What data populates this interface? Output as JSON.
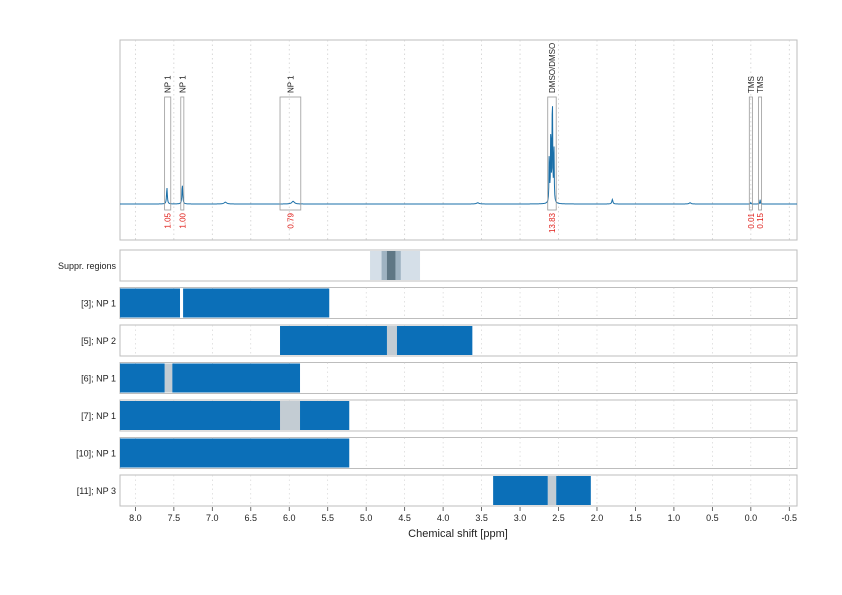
{
  "chart_data": {
    "type": "area",
    "xlabel": "Chemical shift [ppm]",
    "xlim": [
      8.2,
      -0.6
    ],
    "x_ticks": [
      "8.0",
      "7.5",
      "7.0",
      "6.5",
      "6.0",
      "5.5",
      "5.0",
      "4.5",
      "4.0",
      "3.5",
      "3.0",
      "2.5",
      "2.0",
      "1.5",
      "1.0",
      "0.5",
      "0.0",
      "-0.5"
    ],
    "x_tick_values": [
      8.0,
      7.5,
      7.0,
      6.5,
      6.0,
      5.5,
      5.0,
      4.5,
      4.0,
      3.5,
      3.0,
      2.5,
      2.0,
      1.5,
      1.0,
      0.5,
      0.0,
      -0.5
    ],
    "grid": "vertical dotted",
    "spectrum": {
      "line_color": "#1a6fa8",
      "peaks": [
        {
          "shift": 7.59,
          "height": 0.11,
          "width": 0.006
        },
        {
          "shift": 7.39,
          "height": 0.13,
          "width": 0.006
        },
        {
          "shift": 6.83,
          "height": 0.012,
          "width": 0.02
        },
        {
          "shift": 5.95,
          "height": 0.018,
          "width": 0.02
        },
        {
          "shift": 3.55,
          "height": 0.008,
          "width": 0.02
        },
        {
          "shift": 2.62,
          "height": 0.35,
          "width": 0.004
        },
        {
          "shift": 2.6,
          "height": 0.55,
          "width": 0.004
        },
        {
          "shift": 2.58,
          "height": 0.8,
          "width": 0.004
        },
        {
          "shift": 2.56,
          "height": 0.42,
          "width": 0.004
        },
        {
          "shift": 1.8,
          "height": 0.03,
          "width": 0.008
        },
        {
          "shift": 0.79,
          "height": 0.008,
          "width": 0.015
        },
        {
          "shift": 0.0,
          "height": 0.01,
          "width": 0.004
        },
        {
          "shift": -0.12,
          "height": 0.03,
          "width": 0.004
        }
      ]
    },
    "peak_annotations": [
      {
        "label": "NP 1",
        "from": 7.62,
        "to": 7.54,
        "integral": "1.05"
      },
      {
        "label": "NP 1",
        "from": 7.41,
        "to": 7.37,
        "integral": "1.00"
      },
      {
        "label": "NP 1",
        "from": 6.12,
        "to": 5.85,
        "integral": "0.79"
      },
      {
        "label": "DMSO/DMSO",
        "from": 2.64,
        "to": 2.53,
        "integral": "13.83"
      },
      {
        "label": "TMS",
        "from": 0.02,
        "to": -0.02,
        "integral": "0.01"
      },
      {
        "label": "TMS",
        "from": -0.1,
        "to": -0.14,
        "integral": "0.15"
      }
    ],
    "suppression": {
      "label": "Suppr. regions",
      "regions": [
        {
          "from": 4.95,
          "to": 4.3,
          "level": 1,
          "color": "#d5dfe8"
        },
        {
          "from": 4.8,
          "to": 4.55,
          "level": 2,
          "color": "#9fb3c2"
        },
        {
          "from": 4.73,
          "to": 4.62,
          "level": 3,
          "color": "#5f7785"
        }
      ]
    },
    "rows": [
      {
        "label": "[3]; NP 1",
        "bars": [
          {
            "from": 8.2,
            "to": 7.42
          },
          {
            "from": 7.38,
            "to": 5.48
          }
        ],
        "gaps": []
      },
      {
        "label": "[5]; NP 2",
        "bars": [
          {
            "from": 6.12,
            "to": 4.73
          },
          {
            "from": 4.6,
            "to": 3.62
          }
        ],
        "gaps": [
          {
            "from": 4.73,
            "to": 4.6
          }
        ]
      },
      {
        "label": "[6]; NP 1",
        "bars": [
          {
            "from": 8.2,
            "to": 7.62
          },
          {
            "from": 7.52,
            "to": 5.86
          }
        ],
        "gaps": [
          {
            "from": 7.62,
            "to": 7.52
          }
        ]
      },
      {
        "label": "[7]; NP 1",
        "bars": [
          {
            "from": 8.2,
            "to": 6.12
          },
          {
            "from": 5.86,
            "to": 5.22
          }
        ],
        "gaps": [
          {
            "from": 6.12,
            "to": 5.86
          }
        ]
      },
      {
        "label": "[10]; NP 1",
        "bars": [
          {
            "from": 8.2,
            "to": 5.22
          }
        ],
        "gaps": []
      },
      {
        "label": "[11]; NP 3",
        "bars": [
          {
            "from": 3.35,
            "to": 2.64
          },
          {
            "from": 2.53,
            "to": 2.08
          }
        ],
        "gaps": [
          {
            "from": 2.64,
            "to": 2.53
          }
        ]
      }
    ],
    "colors": {
      "bar": "#0b6fb8",
      "gap": "#c3ccd3",
      "frame": "#bdbdbd",
      "grid": "#cfcfcf",
      "integral": "#e0201b",
      "text": "#222222"
    }
  }
}
